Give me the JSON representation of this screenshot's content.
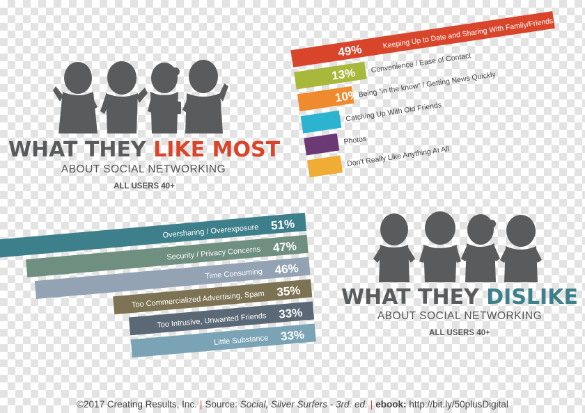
{
  "like_section": {
    "title_part1": "WHAT THEY ",
    "title_part2": "LIKE MOST",
    "subtitle": "ABOUT SOCIAL NETWORKING",
    "audience": "ALL USERS 40+"
  },
  "dislike_section": {
    "title_part1": "WHAT THEY ",
    "title_part2": "DISLIKE",
    "subtitle": "ABOUT SOCIAL NETWORKING",
    "audience": "ALL USERS 40+"
  },
  "colors": {
    "heading_gray": "#5a5b5d",
    "like_accent": "#d9452b",
    "dislike_accent": "#3d7f8a"
  },
  "footer": {
    "copyright": "©2017 Creating Results, Inc.",
    "source_label": "Source:",
    "source_title": "Social, Silver Surfers - 3rd. ed.",
    "ebook_label": "ebook:",
    "ebook_url": "http://bit.ly/50plusDigital"
  },
  "chart_data": [
    {
      "type": "bar",
      "title": "WHAT THEY LIKE MOST",
      "categories": [
        "Keeping Up to Date and Sharing With Family/Friends",
        "Convenience / Ease of Contact",
        "Being “in the know” / Getting News Quickly",
        "Catching Up With Old Friends",
        "Photos",
        "Don't Really Like Anything At All"
      ],
      "values": [
        49,
        13,
        10,
        7,
        6,
        6
      ],
      "value_labels": [
        "49%",
        "13%",
        "10%",
        "7%",
        "6%",
        "6%"
      ],
      "colors": [
        "#d9452b",
        "#a7b83a",
        "#ef8a2e",
        "#2bb3d0",
        "#6b3a75",
        "#f0ad35"
      ],
      "xlabel": "",
      "ylabel": ""
    },
    {
      "type": "bar",
      "title": "WHAT THEY DISLIKE",
      "categories": [
        "Oversharing / Overexposure",
        "Security / Privacy Concerns",
        "Time Consuming",
        "Too Commercialized Advertising, Spam",
        "Too Intrusive, Unwanted Friends",
        "Little Substance"
      ],
      "values": [
        51,
        47,
        46,
        35,
        33,
        33
      ],
      "value_labels": [
        "51%",
        "47%",
        "46%",
        "35%",
        "33%",
        "33%"
      ],
      "colors": [
        "#3d7f8a",
        "#6f8f80",
        "#93a3b3",
        "#7d7354",
        "#5b6876",
        "#7aa4b6"
      ],
      "xlabel": "",
      "ylabel": ""
    }
  ]
}
